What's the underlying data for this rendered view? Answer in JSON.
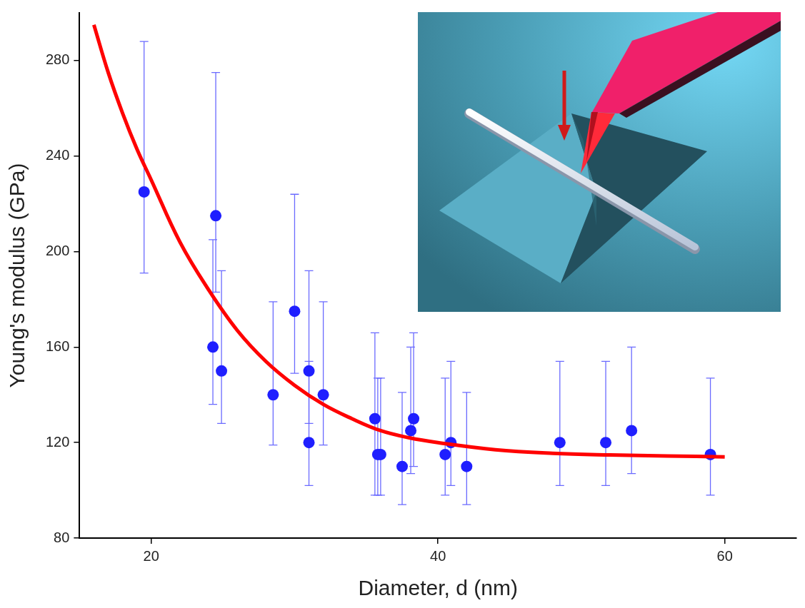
{
  "chart_data": {
    "type": "scatter",
    "x_label": "Diameter, d (nm)",
    "y_label": "Young's modulus (GPa)",
    "xlim": [
      15,
      65
    ],
    "xticks": [
      20,
      40,
      60
    ],
    "ylim": [
      80,
      300
    ],
    "yticks": [
      80,
      120,
      160,
      200,
      240,
      280
    ],
    "grid": false,
    "series": [
      {
        "type": "scatter",
        "color": "#1f1fff",
        "marker": "circle",
        "x": [
          19.5,
          24.3,
          24.5,
          24.9,
          28.5,
          30,
          31,
          31,
          32,
          35.6,
          35.8,
          36,
          37.5,
          38.1,
          38.3,
          40.5,
          40.9,
          42,
          48.5,
          51.7,
          53.5,
          59
        ],
        "values": [
          225,
          160,
          215,
          150,
          140,
          175,
          150,
          120,
          140,
          130,
          115,
          115,
          110,
          125,
          130,
          115,
          120,
          110,
          120,
          120,
          125,
          115
        ],
        "error_lower": [
          191,
          136,
          183,
          128,
          119,
          149,
          128,
          102,
          119,
          98,
          98,
          98,
          94,
          107,
          110,
          98,
          102,
          94,
          102,
          102,
          107,
          98
        ],
        "error_upper": [
          288,
          205,
          275,
          192,
          179,
          224,
          192,
          154,
          179,
          166,
          147,
          147,
          141,
          160,
          166,
          147,
          154,
          141,
          154,
          154,
          160,
          147
        ]
      },
      {
        "type": "line",
        "color": "#ff0000",
        "line_style": "solid",
        "x": [
          16,
          17,
          18,
          19,
          20,
          22,
          24,
          26,
          28,
          30,
          32,
          34,
          36,
          38,
          40,
          44,
          48,
          52,
          56,
          60
        ],
        "values": [
          295,
          275,
          258,
          243,
          230,
          204,
          184,
          167,
          154,
          144,
          136,
          130,
          125,
          122,
          120,
          117,
          115.5,
          114.8,
          114.4,
          114
        ]
      }
    ]
  }
}
